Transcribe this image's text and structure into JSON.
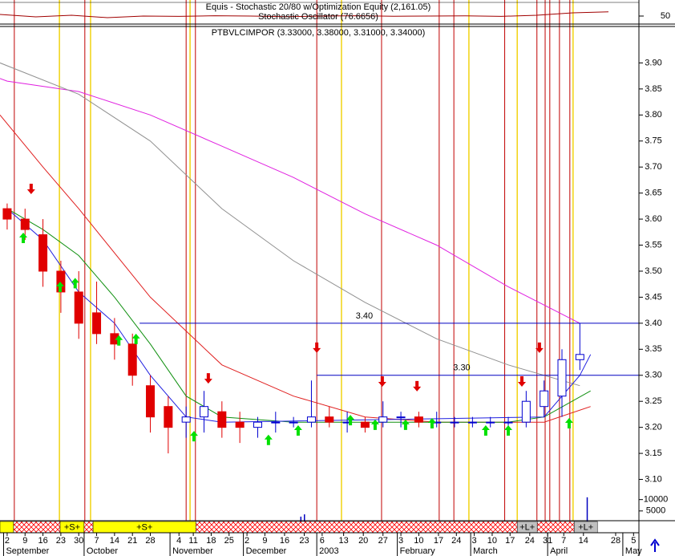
{
  "chart_data": [
    {
      "type": "line",
      "title": "Equis - Stochastic 20/80 w/Optimization Equity (2,161.05)",
      "subtitle": "Stochastic Oscillator (76.6656)",
      "x": [
        -2,
        8,
        18,
        28,
        38,
        48,
        58,
        68,
        78,
        88,
        98,
        108,
        118,
        128,
        138,
        148,
        158,
        168
      ],
      "series": [
        {
          "color": "#a00000",
          "values": [
            60,
            45,
            55,
            40,
            50,
            48,
            52,
            50,
            46,
            50,
            52,
            49,
            50,
            51,
            48,
            55,
            70,
            76
          ]
        }
      ],
      "ylim": [
        0,
        100
      ],
      "yticks": [
        50
      ]
    },
    {
      "type": "candlestick",
      "title": "PTBVLCIMPOR (3.33000, 3.38000, 3.31000, 3.34000)",
      "x": [
        0,
        5,
        10,
        15,
        20,
        25,
        30,
        35,
        40,
        45,
        50,
        55,
        60,
        65,
        70,
        75,
        80,
        85,
        90,
        95,
        100,
        105,
        110,
        115,
        120,
        125,
        130,
        135,
        140,
        145,
        150,
        155,
        160
      ],
      "open": [
        3.62,
        3.6,
        3.57,
        3.5,
        3.46,
        3.42,
        3.38,
        3.36,
        3.28,
        3.24,
        3.21,
        3.22,
        3.23,
        3.21,
        3.2,
        3.21,
        3.21,
        3.21,
        3.22,
        3.21,
        3.21,
        3.21,
        3.22,
        3.22,
        3.21,
        3.21,
        3.21,
        3.21,
        3.21,
        3.21,
        3.24,
        3.26,
        3.33
      ],
      "high": [
        3.63,
        3.62,
        3.6,
        3.52,
        3.5,
        3.48,
        3.41,
        3.38,
        3.3,
        3.26,
        3.24,
        3.27,
        3.25,
        3.23,
        3.22,
        3.23,
        3.22,
        3.29,
        3.24,
        3.23,
        3.22,
        3.25,
        3.23,
        3.23,
        3.23,
        3.22,
        3.22,
        3.22,
        3.22,
        3.27,
        3.29,
        3.35,
        3.4
      ],
      "low": [
        3.58,
        3.56,
        3.47,
        3.42,
        3.37,
        3.36,
        3.33,
        3.28,
        3.19,
        3.15,
        3.18,
        3.19,
        3.18,
        3.17,
        3.18,
        3.19,
        3.2,
        3.2,
        3.2,
        3.19,
        3.19,
        3.2,
        3.2,
        3.2,
        3.2,
        3.2,
        3.2,
        3.2,
        3.2,
        3.2,
        3.22,
        3.22,
        3.31
      ],
      "close": [
        3.6,
        3.58,
        3.5,
        3.46,
        3.4,
        3.38,
        3.36,
        3.3,
        3.22,
        3.2,
        3.22,
        3.24,
        3.2,
        3.2,
        3.21,
        3.21,
        3.21,
        3.22,
        3.21,
        3.21,
        3.2,
        3.22,
        3.22,
        3.21,
        3.21,
        3.21,
        3.21,
        3.21,
        3.21,
        3.25,
        3.27,
        3.33,
        3.34
      ],
      "xlim": [
        -2,
        176.5
      ],
      "ylim": [
        3.07,
        3.97
      ],
      "yticks": [
        {
          "value": 3.9,
          "label": "3.90"
        },
        3.85,
        {
          "value": 3.8,
          "label": "3.80"
        },
        3.75,
        {
          "value": 3.7,
          "label": "3.70"
        },
        3.65,
        {
          "value": 3.6,
          "label": "3.60"
        },
        3.55,
        {
          "value": 3.5,
          "label": "3.50"
        },
        3.45,
        {
          "value": 3.4,
          "label": "3.40"
        },
        3.35,
        {
          "value": 3.3,
          "label": "3.30"
        },
        3.25,
        {
          "value": 3.2,
          "label": "3.20"
        },
        3.15,
        {
          "value": 3.1,
          "label": "3.10"
        }
      ],
      "xticks": [
        {
          "value": 0,
          "label": "2"
        },
        {
          "value": 5,
          "label": "9"
        },
        {
          "value": 10,
          "label": "16"
        },
        {
          "value": 15,
          "label": "23"
        },
        {
          "value": 20,
          "label": "30"
        },
        {
          "value": 25,
          "label": "7"
        },
        {
          "value": 30,
          "label": "14"
        },
        {
          "value": 35,
          "label": "21"
        },
        {
          "value": 40,
          "label": "28"
        },
        {
          "value": 48,
          "label": "4"
        },
        {
          "value": 52,
          "label": "11"
        },
        {
          "value": 57,
          "label": "18"
        },
        {
          "value": 62,
          "label": "25"
        },
        {
          "value": 67,
          "label": "2"
        },
        {
          "value": 72,
          "label": "9"
        },
        {
          "value": 77.5,
          "label": "16"
        },
        {
          "value": 83,
          "label": "23"
        },
        {
          "value": 88,
          "label": "6"
        },
        {
          "value": 94,
          "label": "13"
        },
        {
          "value": 99.5,
          "label": "20"
        },
        {
          "value": 105,
          "label": "27"
        },
        {
          "value": 110,
          "label": "3"
        },
        {
          "value": 115,
          "label": "10"
        },
        {
          "value": 120.5,
          "label": "17"
        },
        {
          "value": 125.5,
          "label": "24"
        },
        {
          "value": 130.5,
          "label": "3"
        },
        {
          "value": 135.5,
          "label": "10"
        },
        {
          "value": 140.5,
          "label": "17"
        },
        {
          "value": 146,
          "label": "24"
        },
        {
          "value": 151,
          "label": "31"
        },
        {
          "value": 155.5,
          "label": "7"
        },
        {
          "value": 161,
          "label": "14"
        },
        {
          "value": 170,
          "label": "28"
        },
        {
          "value": 175,
          "label": "5"
        }
      ],
      "xticks_major": [
        {
          "value": -1,
          "label": "September"
        },
        {
          "value": 21.5,
          "label": "October"
        },
        {
          "value": 45.5,
          "label": "November"
        },
        {
          "value": 66,
          "label": "December"
        },
        {
          "value": 86.5,
          "label": "2003"
        },
        {
          "value": 109,
          "label": "February"
        },
        {
          "value": 129.5,
          "label": "March"
        },
        {
          "value": 151,
          "label": "April"
        },
        {
          "value": 172,
          "label": "May"
        }
      ],
      "moving_averages": [
        {
          "color": "#e020e0",
          "x": [
            -2,
            0,
            20,
            40,
            60,
            80,
            100,
            120,
            140,
            160
          ],
          "values": [
            3.87,
            3.865,
            3.845,
            3.8,
            3.74,
            3.68,
            3.61,
            3.55,
            3.47,
            3.4
          ]
        },
        {
          "color": "#909090",
          "x": [
            -2,
            20,
            40,
            60,
            80,
            100,
            120,
            140,
            150,
            160
          ],
          "values": [
            3.9,
            3.84,
            3.75,
            3.62,
            3.52,
            3.44,
            3.37,
            3.32,
            3.3,
            3.28
          ]
        },
        {
          "color": "#e02020",
          "x": [
            -2,
            10,
            20,
            40,
            60,
            80,
            100,
            120,
            140,
            150,
            163
          ],
          "values": [
            3.8,
            3.7,
            3.62,
            3.45,
            3.32,
            3.26,
            3.22,
            3.21,
            3.21,
            3.21,
            3.24
          ]
        },
        {
          "color": "#109010",
          "x": [
            0,
            10,
            20,
            30,
            40,
            50,
            60,
            80,
            140,
            150,
            163
          ],
          "values": [
            3.62,
            3.58,
            3.53,
            3.45,
            3.36,
            3.26,
            3.22,
            3.21,
            3.21,
            3.22,
            3.27
          ]
        },
        {
          "color": "#2020e0",
          "x": [
            0,
            10,
            20,
            30,
            40,
            50,
            60,
            150,
            160,
            163
          ],
          "values": [
            3.62,
            3.56,
            3.46,
            3.4,
            3.3,
            3.22,
            3.21,
            3.22,
            3.3,
            3.34
          ]
        }
      ],
      "levels": [
        {
          "value": 3.4,
          "label": "3.40",
          "x_start": 37
        },
        {
          "value": 3.3,
          "label": "3.30",
          "x_start": 86.5
        }
      ],
      "up_arrows": {
        "x": [
          4.5,
          14.8,
          19,
          31.2,
          36,
          52.2,
          73,
          81.3,
          95.9,
          102.8,
          111.3,
          118.7,
          133.7,
          140,
          157
        ],
        "values": [
          3.574,
          3.48,
          3.487,
          3.377,
          3.38,
          3.193,
          3.186,
          3.204,
          3.224,
          3.215,
          3.215,
          3.218,
          3.204,
          3.204,
          3.218
        ]
      },
      "down_arrows": {
        "x": [
          6.7,
          56.2,
          86.5,
          104.8,
          114.5,
          143.8,
          148.7
        ],
        "values": [
          3.648,
          3.284,
          3.343,
          3.278,
          3.269,
          3.278,
          3.343
        ]
      },
      "red_lines": [
        2,
        21.7,
        50,
        52.6,
        86.5,
        104.6,
        120.7,
        124.8,
        139,
        148,
        150.3,
        151.6,
        154.3,
        157.2
      ],
      "yellow_lines": [
        14.6,
        23.3,
        51.1,
        93.4,
        129,
        142.5,
        158.1
      ],
      "signal_bar": [
        {
          "from": -2,
          "to": 1.8,
          "color": "#ffff00"
        },
        {
          "from": 1.8,
          "to": 14.8,
          "color": "#ff0000"
        },
        {
          "from": 14.8,
          "to": 21.5,
          "color": "#ffff00",
          "label": "+S+"
        },
        {
          "from": 21.5,
          "to": 24,
          "color": "#ff0000"
        },
        {
          "from": 24,
          "to": 52.7,
          "color": "#ffff00",
          "label": "+S+"
        },
        {
          "from": 52.7,
          "to": 142.5,
          "color": "#ff0000"
        },
        {
          "from": 142.5,
          "to": 148.1,
          "color": "#c0c0c0",
          "label": "+L+"
        },
        {
          "from": 148.1,
          "to": 158.4,
          "color": "#ff0000"
        },
        {
          "from": 158.4,
          "to": 164.9,
          "color": "#c0c0c0",
          "label": "+L+"
        }
      ]
    },
    {
      "type": "bar",
      "x": [
        82,
        83,
        162
      ],
      "values": [
        2500,
        3500,
        11000
      ],
      "color": "#0000c0",
      "ylim": [
        0,
        12000
      ],
      "yticks": [
        10000,
        5000
      ]
    }
  ]
}
